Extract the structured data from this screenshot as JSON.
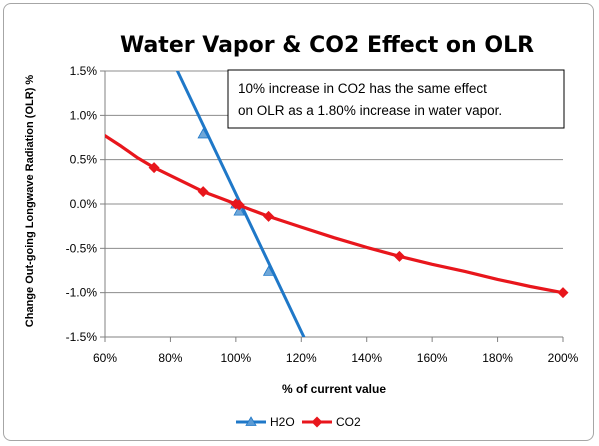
{
  "chart_data": {
    "type": "line",
    "title": "Water Vapor & CO2 Effect on OLR",
    "xlabel": "% of current value",
    "ylabel": "Change Out-going Longwave Radiation (OLR) %",
    "xlim": [
      0.6,
      2.0
    ],
    "ylim": [
      -0.015,
      0.015
    ],
    "x_ticks": [
      0.6,
      0.8,
      1.0,
      1.2,
      1.4,
      1.6,
      1.8,
      2.0
    ],
    "x_tick_labels": [
      "60%",
      "80%",
      "100%",
      "120%",
      "140%",
      "160%",
      "180%",
      "200%"
    ],
    "y_ticks": [
      0.015,
      0.01,
      0.005,
      0.0,
      -0.005,
      -0.01,
      -0.015
    ],
    "y_tick_labels": [
      "1.5%",
      "1.0%",
      "0.5%",
      "0.0%",
      "-0.5%",
      "-1.0%",
      "-1.5%"
    ],
    "grid": "horizontal",
    "legend_position": "bottom",
    "annotation": {
      "lines": [
        "10% increase in CO2 has the same effect",
        "on OLR as a 1.80% increase in water vapor."
      ]
    },
    "series": [
      {
        "name": "H2O",
        "color": "#1f78c8",
        "marker": "triangle",
        "x": [
          0.9,
          1.0,
          1.01,
          1.1
        ],
        "y": [
          0.0079,
          0.0,
          -0.0008,
          -0.0076
        ],
        "line_x": [
          0.819,
          1.208
        ],
        "line_y": [
          0.0152,
          -0.015
        ]
      },
      {
        "name": "CO2",
        "color": "#e8161c",
        "marker": "diamond",
        "x": [
          0.75,
          0.9,
          1.0,
          1.01,
          1.1,
          1.5,
          2.0
        ],
        "y": [
          0.0041,
          0.0014,
          0.0,
          -0.0001,
          -0.0014,
          -0.0059,
          -0.01
        ],
        "line_x": [
          0.6,
          0.65,
          0.7,
          0.75,
          0.8,
          0.85,
          0.9,
          0.95,
          1.0,
          1.05,
          1.1,
          1.2,
          1.3,
          1.4,
          1.5,
          1.6,
          1.7,
          1.8,
          1.9,
          2.0
        ],
        "line_y": [
          0.0077,
          0.0065,
          0.0052,
          0.0041,
          0.0032,
          0.0023,
          0.0014,
          0.0007,
          0.0,
          -0.0007,
          -0.0014,
          -0.0026,
          -0.0038,
          -0.0049,
          -0.0059,
          -0.0068,
          -0.0076,
          -0.0085,
          -0.0093,
          -0.01
        ]
      }
    ]
  }
}
